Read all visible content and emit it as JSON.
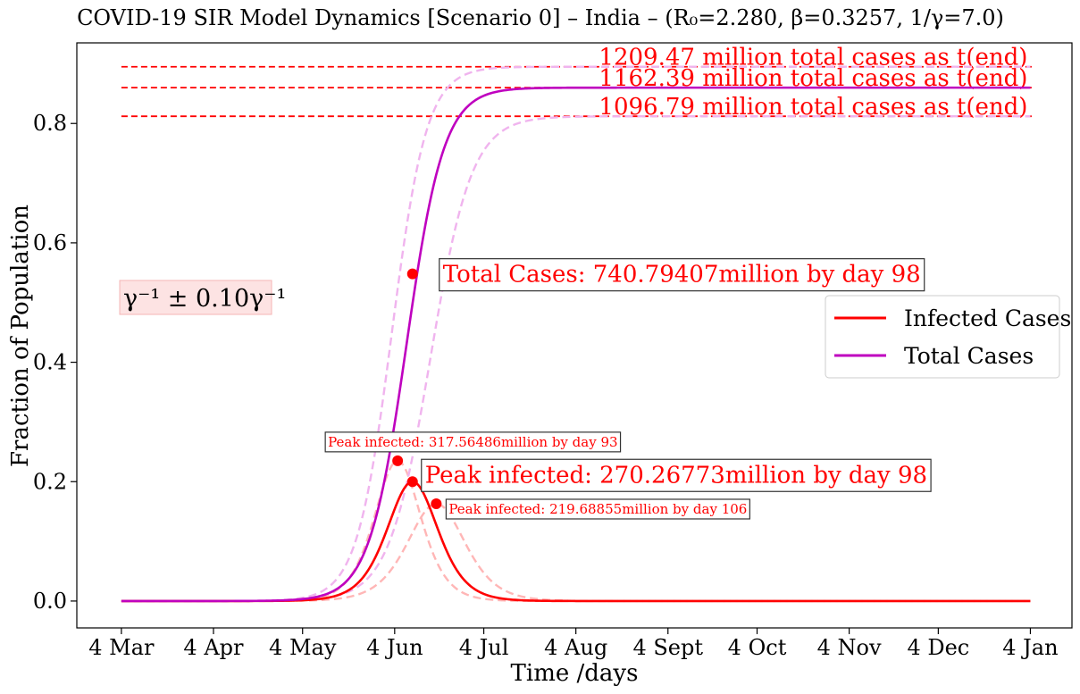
{
  "chart_data": {
    "type": "line",
    "title": "COVID-19 SIR Model Dynamics [Scenario 0] – India – (R₀=2.280, β=0.3257, 1/γ=7.0)",
    "xlabel": "Time /days",
    "ylabel": "Fraction of Population",
    "xlim": [
      -15,
      320
    ],
    "ylim": [
      -0.045,
      0.935
    ],
    "x_ticks": [
      {
        "day": 0,
        "label": "4 Mar"
      },
      {
        "day": 31,
        "label": "4 Apr"
      },
      {
        "day": 61,
        "label": "4 May"
      },
      {
        "day": 92,
        "label": "4 Jun"
      },
      {
        "day": 122,
        "label": "4 Jul"
      },
      {
        "day": 153,
        "label": "4 Aug"
      },
      {
        "day": 184,
        "label": "4 Sept"
      },
      {
        "day": 214,
        "label": "4 Oct"
      },
      {
        "day": 245,
        "label": "4 Nov"
      },
      {
        "day": 275,
        "label": "4 Dec"
      },
      {
        "day": 306,
        "label": "4 Jan"
      }
    ],
    "y_ticks": [
      {
        "value": 0.0,
        "label": "0.0"
      },
      {
        "value": 0.2,
        "label": "0.2"
      },
      {
        "value": 0.4,
        "label": "0.4"
      },
      {
        "value": 0.6,
        "label": "0.6"
      },
      {
        "value": 0.8,
        "label": "0.8"
      }
    ],
    "series": [
      {
        "name": "Infected Cases",
        "color": "#ff0000",
        "style": "solid",
        "kind": "infected",
        "peak_day": 98,
        "peak_value": 0.2,
        "width": 11.5
      },
      {
        "name": "Total Cases",
        "color": "#bf00bf",
        "style": "solid",
        "kind": "total",
        "mid_day": 96,
        "final": 0.86,
        "rate": 0.159
      },
      {
        "color": "#ffb6b6",
        "style": "dashed",
        "kind": "infected",
        "peak_day": 93,
        "peak_value": 0.235,
        "width": 10.5
      },
      {
        "color": "#ffb6b6",
        "style": "dashed",
        "kind": "infected",
        "peak_day": 106,
        "peak_value": 0.163,
        "width": 13.0
      },
      {
        "color": "#f0b4ee",
        "style": "dashed",
        "kind": "total",
        "mid_day": 91,
        "final": 0.895,
        "rate": 0.17
      },
      {
        "color": "#f0b4ee",
        "style": "dashed",
        "kind": "total",
        "mid_day": 104,
        "final": 0.812,
        "rate": 0.143
      }
    ],
    "asymptotes": [
      {
        "value": 0.895,
        "label": "1209.47 million total cases as t(end)"
      },
      {
        "value": 0.86,
        "label": "1162.39 million total cases as t(end)"
      },
      {
        "value": 0.812,
        "label": "1096.79 million total cases as t(end)"
      }
    ],
    "markers": [
      {
        "day": 98,
        "value": 0.548,
        "label": "Total Cases: 740.79407million by day 98",
        "size": "big",
        "dx": 28,
        "dy": 0
      },
      {
        "day": 98,
        "value": 0.2,
        "label": "Peak infected: 270.26773million by day 98",
        "size": "big",
        "dx": 8,
        "dy": -8
      },
      {
        "day": 93,
        "value": 0.235,
        "label": "Peak infected: 317.56486million by day 93",
        "size": "small",
        "dx": -82,
        "dy": -21
      },
      {
        "day": 106,
        "value": 0.163,
        "label": "Peak infected: 219.68855million by day 106",
        "size": "small",
        "dx": 10,
        "dy": 6
      }
    ],
    "note": "γ⁻¹ ± 0.10γ⁻¹",
    "legend_position": "center-right",
    "grid": false
  }
}
